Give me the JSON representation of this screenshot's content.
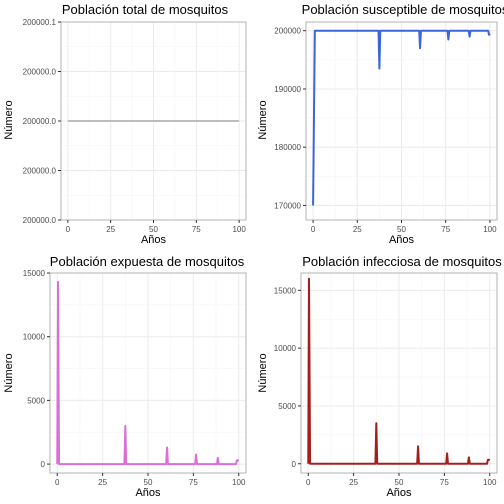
{
  "colors": {
    "background": "#ffffff",
    "panel_border": "#b3b3b3",
    "grid_major": "#ebebeb",
    "grid_minor": "#f5f5f5",
    "tick_text": "#4d4d4d"
  },
  "chart_data": [
    {
      "type": "line",
      "title": "Población total de mosquitos",
      "xlabel": "Años",
      "ylabel": "Número",
      "xlim": [
        -4,
        104
      ],
      "ylim": [
        199999.9,
        200000.1
      ],
      "x_ticks": [
        0,
        25,
        50,
        75,
        100
      ],
      "x_tick_labels": [
        "0",
        "25",
        "50",
        "75",
        "100"
      ],
      "y_ticks": [
        199999.9,
        199999.95,
        200000,
        200000.05,
        200000.1
      ],
      "y_tick_labels": [
        "200000.0",
        "200000.0",
        "200000.0",
        "200000.0",
        "200000.1"
      ],
      "grid": true,
      "series": [
        {
          "color": "#bdbdbd",
          "x": [
            0,
            100
          ],
          "y": [
            200000,
            200000
          ]
        }
      ]
    },
    {
      "type": "line",
      "title": "Población susceptible de mosquitos",
      "xlabel": "Años",
      "ylabel": "Número",
      "xlim": [
        -4,
        104
      ],
      "ylim": [
        167500,
        201500
      ],
      "x_ticks": [
        0,
        25,
        50,
        75,
        100
      ],
      "x_tick_labels": [
        "0",
        "25",
        "50",
        "75",
        "100"
      ],
      "y_ticks": [
        170000,
        180000,
        190000,
        200000
      ],
      "y_tick_labels": [
        "170000",
        "180000",
        "190000",
        "200000"
      ],
      "grid": true,
      "series": [
        {
          "color": "#3a66d8",
          "x": [
            0,
            1,
            1.5,
            37,
            37.5,
            38,
            38.5,
            60,
            60.5,
            61,
            61.5,
            76,
            76.5,
            77,
            88,
            88.5,
            89,
            99,
            99.5,
            100
          ],
          "y": [
            170000,
            200000,
            200000,
            200000,
            193500,
            200000,
            200000,
            200000,
            197000,
            200000,
            200000,
            200000,
            198500,
            200000,
            200000,
            199000,
            200000,
            200000,
            199300,
            199500
          ]
        }
      ]
    },
    {
      "type": "line",
      "title": "Población expuesta de mosquitos",
      "xlabel": "Años",
      "ylabel": "Número",
      "xlim": [
        -4,
        104
      ],
      "ylim": [
        -700,
        15000
      ],
      "x_ticks": [
        0,
        25,
        50,
        75,
        100
      ],
      "x_tick_labels": [
        "0",
        "25",
        "50",
        "75",
        "100"
      ],
      "y_ticks": [
        0,
        5000,
        10000,
        15000
      ],
      "y_tick_labels": [
        "0",
        "5000",
        "10000",
        "15000"
      ],
      "grid": true,
      "series": [
        {
          "color": "#da70d6",
          "x": [
            0,
            0.4,
            1,
            1.5,
            37,
            37.5,
            38,
            60,
            60.5,
            61,
            76,
            76.5,
            77,
            88,
            88.5,
            89,
            98.5,
            99,
            99.5,
            100
          ],
          "y": [
            0,
            14300,
            0,
            0,
            0,
            3000,
            0,
            0,
            1300,
            0,
            0,
            750,
            0,
            0,
            500,
            0,
            0,
            300,
            300,
            250
          ]
        }
      ]
    },
    {
      "type": "line",
      "title": "Población infecciosa de mosquitos",
      "xlabel": "Años",
      "ylabel": "Número",
      "xlim": [
        -4,
        104
      ],
      "ylim": [
        -800,
        16500
      ],
      "x_ticks": [
        0,
        25,
        50,
        75,
        100
      ],
      "x_tick_labels": [
        "0",
        "25",
        "50",
        "75",
        "100"
      ],
      "y_ticks": [
        0,
        5000,
        10000,
        15000
      ],
      "y_tick_labels": [
        "0",
        "5000",
        "10000",
        "15000"
      ],
      "grid": true,
      "series": [
        {
          "color": "#a51d1d",
          "x": [
            0,
            0.4,
            1,
            1.5,
            37,
            37.5,
            38,
            60,
            60.5,
            61,
            76,
            76.5,
            77,
            88,
            88.5,
            89,
            98.5,
            99,
            99.5,
            100
          ],
          "y": [
            0,
            16000,
            0,
            0,
            0,
            3500,
            0,
            0,
            1500,
            0,
            0,
            900,
            0,
            0,
            550,
            0,
            0,
            350,
            350,
            300
          ]
        }
      ]
    }
  ]
}
